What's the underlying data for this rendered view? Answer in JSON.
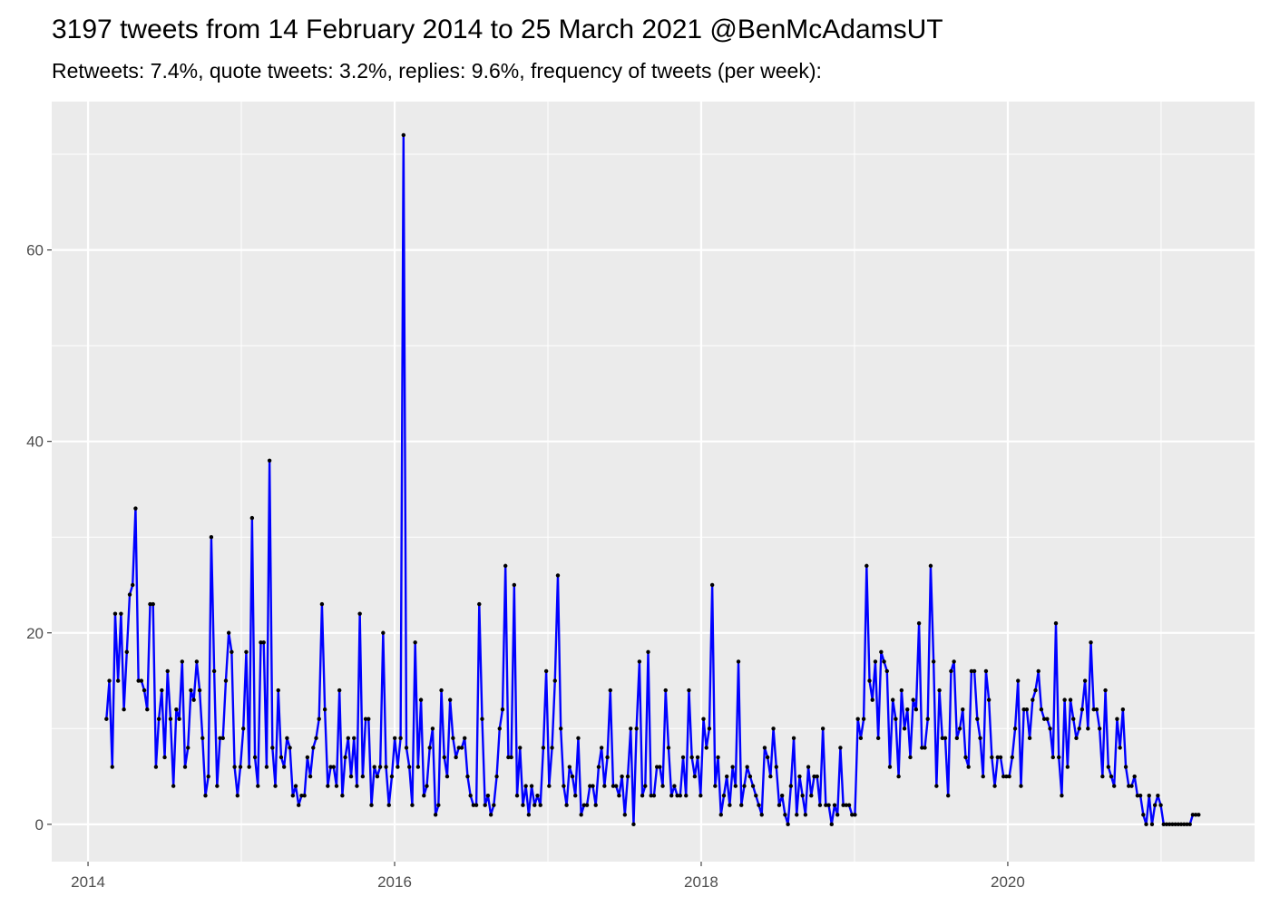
{
  "chart_data": {
    "type": "line",
    "title": "3197 tweets from 14 February 2014 to 25 March 2021 @BenMcAdamsUT",
    "subtitle": "Retweets: 7.4%, quote tweets: 3.2%, replies: 9.6%, frequency of tweets (per week):",
    "color": "#0000ff",
    "point_color": "#000000",
    "grid": true,
    "xlim": [
      2013.763,
      2021.61
    ],
    "xticks": [
      2014,
      2016,
      2018,
      2020
    ],
    "x_minor_grid": [
      2015,
      2017,
      2019,
      2021
    ],
    "ylim": [
      -3.9,
      75.5
    ],
    "yticks": [
      0,
      20,
      40,
      60
    ],
    "y_minor_grid": [
      10,
      30,
      50,
      70
    ],
    "x": [
      2014.12,
      2014.139,
      2014.158,
      2014.177,
      2014.196,
      2014.215,
      2014.234,
      2014.253,
      2014.272,
      2014.291,
      2014.31,
      2014.329,
      2014.348,
      2014.367,
      2014.386,
      2014.405,
      2014.424,
      2014.443,
      2014.462,
      2014.481,
      2014.5,
      2014.519,
      2014.538,
      2014.557,
      2014.576,
      2014.595,
      2014.614,
      2014.633,
      2014.652,
      2014.671,
      2014.69,
      2014.709,
      2014.728,
      2014.747,
      2014.766,
      2014.785,
      2014.804,
      2014.823,
      2014.842,
      2014.861,
      2014.88,
      2014.899,
      2014.918,
      2014.937,
      2014.956,
      2014.975,
      2014.994,
      2015.013,
      2015.032,
      2015.051,
      2015.07,
      2015.089,
      2015.108,
      2015.127,
      2015.146,
      2015.165,
      2015.184,
      2015.203,
      2015.222,
      2015.241,
      2015.26,
      2015.279,
      2015.298,
      2015.317,
      2015.336,
      2015.355,
      2015.374,
      2015.393,
      2015.412,
      2015.431,
      2015.45,
      2015.469,
      2015.488,
      2015.507,
      2015.526,
      2015.545,
      2015.564,
      2015.583,
      2015.602,
      2015.621,
      2015.64,
      2015.659,
      2015.678,
      2015.697,
      2015.716,
      2015.735,
      2015.754,
      2015.773,
      2015.792,
      2015.811,
      2015.83,
      2015.849,
      2015.868,
      2015.887,
      2015.906,
      2015.925,
      2015.944,
      2015.963,
      2015.982,
      2016.001,
      2016.02,
      2016.039,
      2016.058,
      2016.077,
      2016.096,
      2016.115,
      2016.134,
      2016.153,
      2016.172,
      2016.191,
      2016.21,
      2016.229,
      2016.248,
      2016.267,
      2016.286,
      2016.305,
      2016.324,
      2016.343,
      2016.362,
      2016.381,
      2016.4,
      2016.419,
      2016.438,
      2016.457,
      2016.476,
      2016.495,
      2016.514,
      2016.533,
      2016.552,
      2016.571,
      2016.59,
      2016.609,
      2016.628,
      2016.647,
      2016.666,
      2016.685,
      2016.704,
      2016.723,
      2016.742,
      2016.761,
      2016.78,
      2016.799,
      2016.818,
      2016.837,
      2016.856,
      2016.875,
      2016.894,
      2016.913,
      2016.932,
      2016.951,
      2016.97,
      2016.989,
      2017.008,
      2017.027,
      2017.046,
      2017.065,
      2017.084,
      2017.103,
      2017.122,
      2017.141,
      2017.16,
      2017.179,
      2017.198,
      2017.217,
      2017.236,
      2017.255,
      2017.274,
      2017.293,
      2017.312,
      2017.331,
      2017.35,
      2017.369,
      2017.388,
      2017.407,
      2017.426,
      2017.445,
      2017.464,
      2017.483,
      2017.502,
      2017.521,
      2017.54,
      2017.559,
      2017.578,
      2017.597,
      2017.616,
      2017.635,
      2017.654,
      2017.673,
      2017.692,
      2017.711,
      2017.73,
      2017.749,
      2017.768,
      2017.787,
      2017.806,
      2017.825,
      2017.844,
      2017.863,
      2017.882,
      2017.901,
      2017.92,
      2017.939,
      2017.958,
      2017.977,
      2017.996,
      2018.015,
      2018.034,
      2018.053,
      2018.072,
      2018.091,
      2018.11,
      2018.129,
      2018.148,
      2018.167,
      2018.186,
      2018.205,
      2018.224,
      2018.243,
      2018.262,
      2018.281,
      2018.3,
      2018.319,
      2018.338,
      2018.357,
      2018.376,
      2018.395,
      2018.414,
      2018.433,
      2018.452,
      2018.471,
      2018.49,
      2018.509,
      2018.528,
      2018.547,
      2018.566,
      2018.585,
      2018.604,
      2018.623,
      2018.642,
      2018.661,
      2018.68,
      2018.699,
      2018.718,
      2018.737,
      2018.756,
      2018.775,
      2018.794,
      2018.813,
      2018.832,
      2018.851,
      2018.87,
      2018.889,
      2018.908,
      2018.927,
      2018.946,
      2018.965,
      2018.984,
      2019.003,
      2019.022,
      2019.041,
      2019.06,
      2019.079,
      2019.098,
      2019.117,
      2019.136,
      2019.155,
      2019.174,
      2019.193,
      2019.212,
      2019.231,
      2019.25,
      2019.269,
      2019.288,
      2019.307,
      2019.326,
      2019.345,
      2019.364,
      2019.383,
      2019.402,
      2019.421,
      2019.44,
      2019.459,
      2019.478,
      2019.497,
      2019.516,
      2019.535,
      2019.554,
      2019.573,
      2019.592,
      2019.611,
      2019.63,
      2019.649,
      2019.668,
      2019.687,
      2019.706,
      2019.725,
      2019.744,
      2019.763,
      2019.782,
      2019.801,
      2019.82,
      2019.839,
      2019.858,
      2019.877,
      2019.896,
      2019.915,
      2019.934,
      2019.953,
      2019.972,
      2019.991,
      2020.01,
      2020.029,
      2020.048,
      2020.067,
      2020.086,
      2020.105,
      2020.124,
      2020.143,
      2020.162,
      2020.181,
      2020.2,
      2020.219,
      2020.238,
      2020.257,
      2020.276,
      2020.295,
      2020.314,
      2020.333,
      2020.352,
      2020.371,
      2020.39,
      2020.409,
      2020.428,
      2020.447,
      2020.466,
      2020.485,
      2020.504,
      2020.523,
      2020.542,
      2020.561,
      2020.58,
      2020.599,
      2020.618,
      2020.637,
      2020.656,
      2020.675,
      2020.694,
      2020.713,
      2020.732,
      2020.751,
      2020.77,
      2020.789,
      2020.808,
      2020.827,
      2020.846,
      2020.865,
      2020.884,
      2020.903,
      2020.922,
      2020.941,
      2020.96,
      2020.979,
      2020.998,
      2021.017,
      2021.036,
      2021.055,
      2021.074,
      2021.093,
      2021.112,
      2021.131,
      2021.15,
      2021.169,
      2021.188,
      2021.207,
      2021.226,
      2021.245
    ],
    "values": [
      11,
      15,
      6,
      22,
      15,
      22,
      12,
      18,
      24,
      25,
      33,
      15,
      15,
      14,
      12,
      23,
      23,
      6,
      11,
      14,
      7,
      16,
      11,
      4,
      12,
      11,
      17,
      6,
      8,
      14,
      13,
      17,
      14,
      9,
      3,
      5,
      30,
      16,
      4,
      9,
      9,
      15,
      20,
      18,
      6,
      3,
      6,
      10,
      18,
      6,
      32,
      7,
      4,
      19,
      19,
      6,
      38,
      8,
      4,
      14,
      7,
      6,
      9,
      8,
      3,
      4,
      2,
      3,
      3,
      7,
      5,
      8,
      9,
      11,
      23,
      12,
      4,
      6,
      6,
      4,
      14,
      3,
      7,
      9,
      5,
      9,
      4,
      22,
      5,
      11,
      11,
      2,
      6,
      5,
      6,
      20,
      6,
      2,
      5,
      9,
      6,
      9,
      72,
      8,
      6,
      2,
      19,
      6,
      13,
      3,
      4,
      8,
      10,
      1,
      2,
      14,
      7,
      5,
      13,
      9,
      7,
      8,
      8,
      9,
      5,
      3,
      2,
      2,
      23,
      11,
      2,
      3,
      1,
      2,
      5,
      10,
      12,
      27,
      7,
      7,
      25,
      3,
      8,
      2,
      4,
      1,
      4,
      2,
      3,
      2,
      8,
      16,
      4,
      8,
      15,
      26,
      10,
      4,
      2,
      6,
      5,
      3,
      9,
      1,
      2,
      2,
      4,
      4,
      2,
      6,
      8,
      4,
      7,
      14,
      4,
      4,
      3,
      5,
      1,
      5,
      10,
      0,
      10,
      17,
      3,
      4,
      18,
      3,
      3,
      6,
      6,
      4,
      14,
      8,
      3,
      4,
      3,
      3,
      7,
      3,
      14,
      7,
      5,
      7,
      3,
      11,
      8,
      10,
      25,
      4,
      7,
      1,
      3,
      5,
      2,
      6,
      4,
      17,
      2,
      4,
      6,
      5,
      4,
      3,
      2,
      1,
      8,
      7,
      5,
      10,
      6,
      2,
      3,
      1,
      0,
      4,
      9,
      1,
      5,
      3,
      1,
      6,
      3,
      5,
      5,
      2,
      10,
      2,
      2,
      0,
      2,
      1,
      8,
      2,
      2,
      2,
      1,
      1,
      11,
      9,
      11,
      27,
      15,
      13,
      17,
      9,
      18,
      17,
      16,
      6,
      13,
      11,
      5,
      14,
      10,
      12,
      7,
      13,
      12,
      21,
      8,
      8,
      11,
      27,
      17,
      4,
      14,
      9,
      9,
      3,
      16,
      17,
      9,
      10,
      12,
      7,
      6,
      16,
      16,
      11,
      9,
      5,
      16,
      13,
      7,
      4,
      7,
      7,
      5,
      5,
      5,
      7,
      10,
      15,
      4,
      12,
      12,
      9,
      13,
      14,
      16,
      12,
      11,
      11,
      10,
      7,
      21,
      7,
      3,
      13,
      6,
      13,
      11,
      9,
      10,
      12,
      15,
      10,
      19,
      12,
      12,
      10,
      5,
      14,
      6,
      5,
      4,
      11,
      8,
      12,
      6,
      4,
      4,
      5,
      3,
      3,
      1,
      0,
      3,
      0,
      2,
      3,
      2,
      0,
      0,
      0,
      0,
      0,
      0,
      0,
      0,
      0,
      0,
      1,
      1,
      1
    ]
  }
}
